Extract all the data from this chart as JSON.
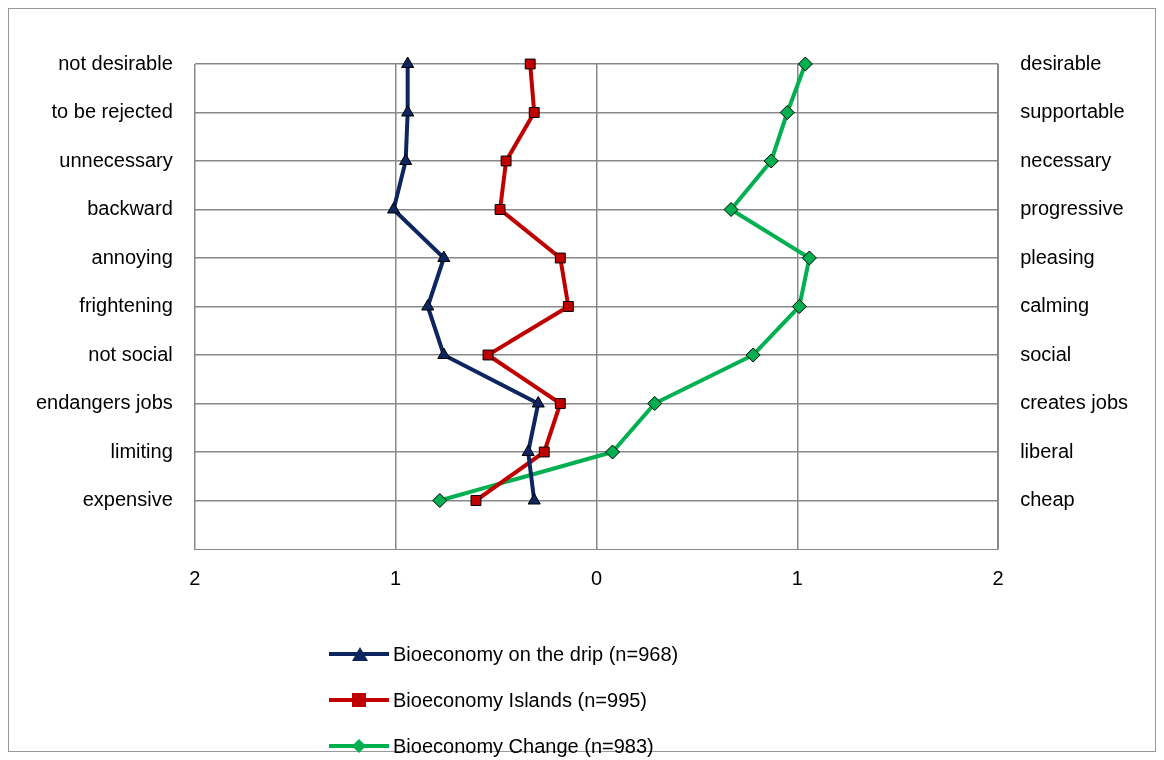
{
  "chart_data": {
    "type": "line",
    "orientation": "horizontal",
    "categories": [
      "not desirable",
      "to be rejected",
      "unnecessary",
      "backward",
      "annoying",
      "frightening",
      "not social",
      "endangers jobs",
      "limiting",
      "expensive"
    ],
    "y2_categories": [
      "desirable",
      "supportable",
      "necessary",
      "progressive",
      "pleasing",
      "calming",
      "social",
      "creates jobs",
      "liberal",
      "cheap"
    ],
    "xlim": [
      -2,
      2
    ],
    "xticks": [
      {
        "value": -2,
        "label": "2"
      },
      {
        "value": -1,
        "label": "1"
      },
      0,
      1,
      2
    ],
    "grid": true,
    "legend": "bottom",
    "series": [
      {
        "name": "Bioeconomy on the drip (n=968)",
        "color": "#0e2660",
        "marker": "triangle",
        "values": [
          -0.94,
          -0.94,
          -0.95,
          -1.01,
          -0.76,
          -0.84,
          -0.76,
          -0.29,
          -0.34,
          -0.31
        ]
      },
      {
        "name": "Bioeconomy Islands (n=995)",
        "color": "#c00000",
        "marker": "square",
        "values": [
          -0.33,
          -0.31,
          -0.45,
          -0.48,
          -0.18,
          -0.14,
          -0.54,
          -0.18,
          -0.26,
          -0.6
        ]
      },
      {
        "name": "Bioeconomy Change (n=983)",
        "color": "#00b050",
        "marker": "diamond",
        "values": [
          1.04,
          0.95,
          0.87,
          0.67,
          1.06,
          1.01,
          0.78,
          0.29,
          0.08,
          -0.78
        ]
      }
    ]
  }
}
